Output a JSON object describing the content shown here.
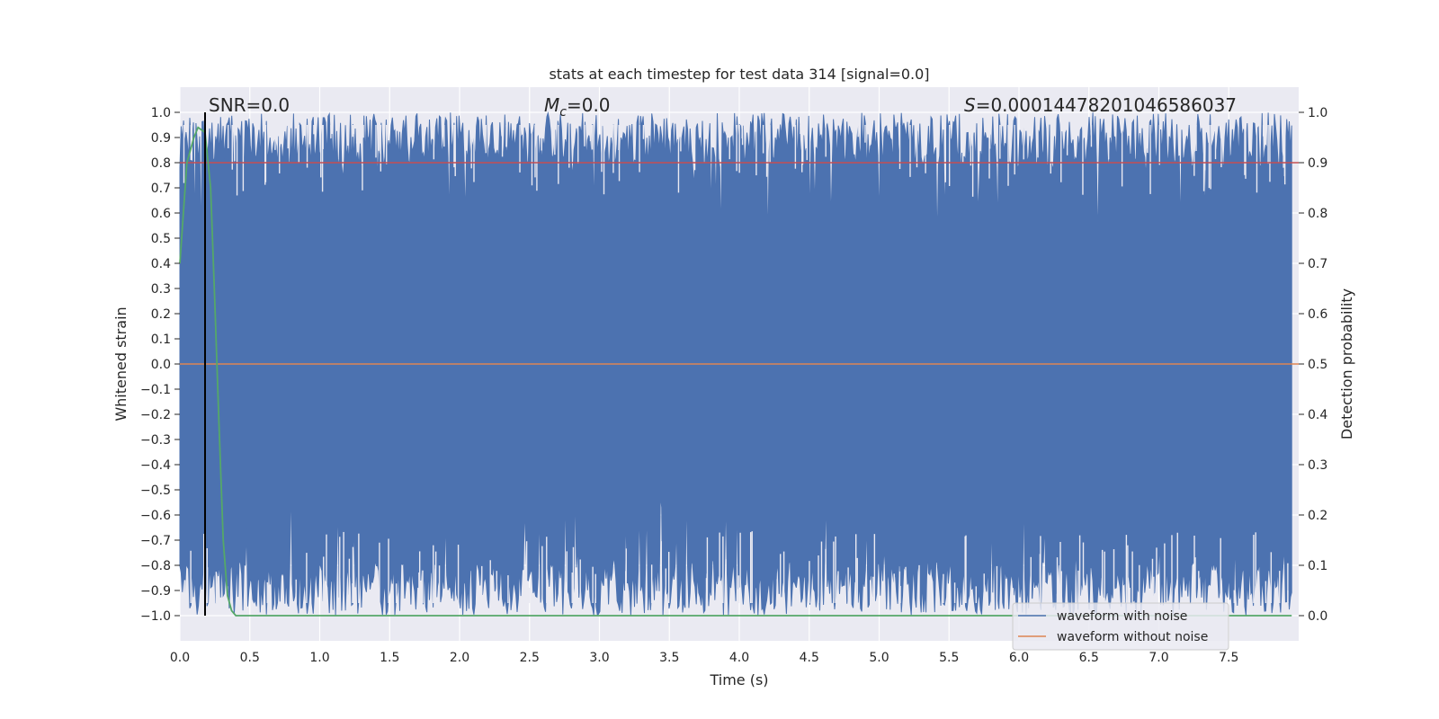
{
  "chart_data": {
    "type": "line",
    "title": "stats at each timestep for test data 314 [signal=0.0]",
    "xlabel": "Time (s)",
    "ylabel": "Whitened strain",
    "y2label": "Detection probability",
    "xlim": [
      0.0,
      8.0
    ],
    "ylim": [
      -1.1,
      1.1
    ],
    "y2lim": [
      -0.05,
      1.05
    ],
    "xticks": [
      "0.0",
      "0.5",
      "1.0",
      "1.5",
      "2.0",
      "2.5",
      "3.0",
      "3.5",
      "4.0",
      "4.5",
      "5.0",
      "5.5",
      "6.0",
      "6.5",
      "7.0",
      "7.5"
    ],
    "yticks": [
      "1.0",
      "0.9",
      "0.8",
      "0.7",
      "0.6",
      "0.5",
      "0.4",
      "0.3",
      "0.2",
      "0.1",
      "0.0",
      "−0.1",
      "−0.2",
      "−0.3",
      "−0.4",
      "−0.5",
      "−0.6",
      "−0.7",
      "−0.8",
      "−0.9",
      "−1.0"
    ],
    "y2ticks": [
      "1.0",
      "0.9",
      "0.8",
      "0.7",
      "0.6",
      "0.5",
      "0.4",
      "0.3",
      "0.2",
      "0.1",
      "0.0"
    ],
    "grid": true,
    "legend_position": "lower-right",
    "annotations": {
      "snr": "SNR=0.0",
      "mc_symbol": "M",
      "mc_sub": "c",
      "mc_value": "=0.0",
      "s_symbol": "S",
      "s_value": "=0.00014478201046586037"
    },
    "series": [
      {
        "name": "waveform with noise",
        "color": "#4c72b0",
        "envelope_upper_mean": 0.9,
        "envelope_lower_mean": -0.9
      },
      {
        "name": "waveform without noise",
        "color": "#dd8452",
        "value": 0.0
      },
      {
        "name": "",
        "color": "#55a868",
        "axis": "right",
        "x": [
          0.0,
          0.05,
          0.1,
          0.13,
          0.18,
          0.22,
          0.25,
          0.28,
          0.31,
          0.34,
          0.37,
          0.4,
          7.95
        ],
        "values": [
          0.7,
          0.9,
          0.95,
          0.97,
          0.96,
          0.85,
          0.62,
          0.38,
          0.15,
          0.04,
          0.01,
          0.0,
          0.0
        ]
      },
      {
        "name": "",
        "color": "#c44e52",
        "axis": "right",
        "value": 0.9
      }
    ],
    "vertical_line": {
      "x": 0.18,
      "color": "#000000"
    }
  }
}
